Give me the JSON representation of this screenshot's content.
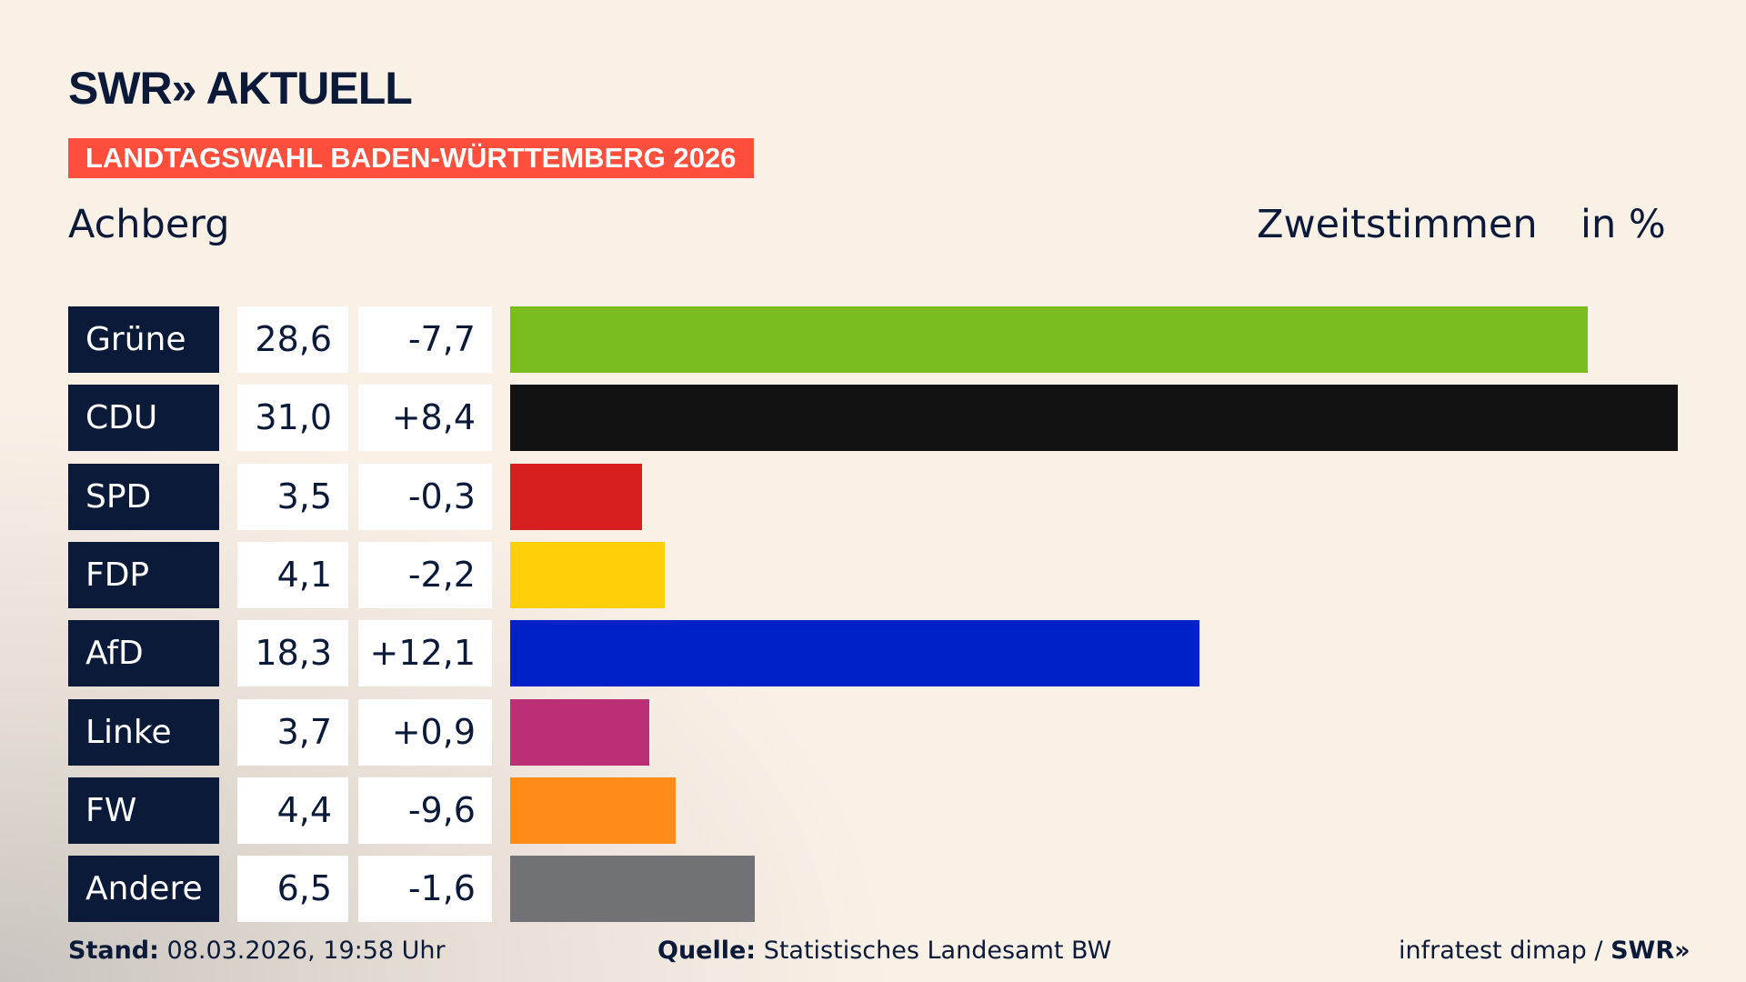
{
  "header": {
    "logo": "SWR» AKTUELL",
    "banner": "LANDTAGSWAHL BADEN-WÜRTTEMBERG 2026",
    "region": "Achberg",
    "metric": "Zweitstimmen",
    "unit": "in %"
  },
  "chart_data": {
    "type": "bar",
    "orientation": "horizontal",
    "xlim": [
      0,
      31
    ],
    "categories": [
      "Grüne",
      "CDU",
      "SPD",
      "FDP",
      "AfD",
      "Linke",
      "FW",
      "Andere"
    ],
    "values": [
      28.6,
      31.0,
      3.5,
      4.1,
      18.3,
      3.7,
      4.4,
      6.5
    ],
    "value_labels": [
      "28,6",
      "31,0",
      "3,5",
      "4,1",
      "18,3",
      "3,7",
      "4,4",
      "6,5"
    ],
    "diff_labels": [
      "-7,7",
      "+8,4",
      "-0,3",
      "-2,2",
      "+12,1",
      "+0,9",
      "-9,6",
      "-1,6"
    ],
    "colors": [
      "#7bbd1e",
      "#121212",
      "#d81f1f",
      "#ffd00a",
      "#0021c8",
      "#bb2f76",
      "#ff8c18",
      "#717275"
    ]
  },
  "footer": {
    "stand_label": "Stand:",
    "stand": "08.03.2026, 19:58 Uhr",
    "source_label": "Quelle:",
    "source": "Statistisches Landesamt BW",
    "credit": "infratest dimap / ",
    "credit_logo": "SWR»"
  }
}
